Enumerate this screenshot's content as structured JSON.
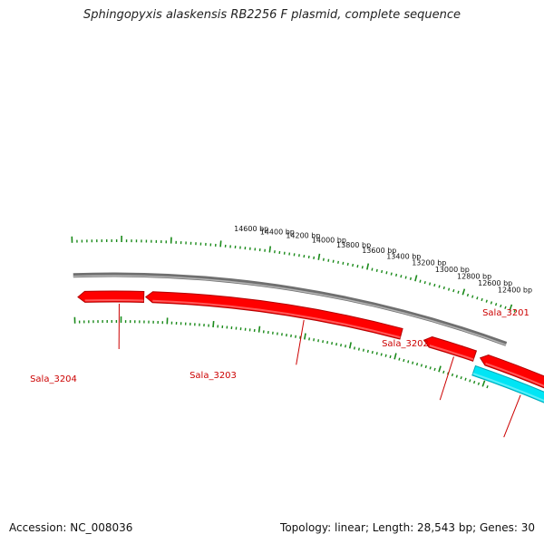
{
  "title": "Sphingopyxis alaskensis RB2256 F plasmid, complete sequence",
  "footer": {
    "accession": "Accession: NC_008036",
    "topology": "Topology: linear; Length: 28,543 bp; Genes: 30"
  },
  "tick_labels": [
    "12400 bp",
    "12600 bp",
    "12800 bp",
    "13000 bp",
    "13200 bp",
    "13400 bp",
    "13600 bp",
    "13800 bp",
    "14000 bp",
    "14200 bp",
    "14400 bp",
    "14600 bp"
  ],
  "genes": [
    {
      "name": "Sala_3201",
      "color": "#00e5f5",
      "strand": "+"
    },
    {
      "name": "Sala_3202",
      "color": "#ff0000",
      "strand": "-"
    },
    {
      "name": "Sala_3203",
      "color": "#ff0000",
      "strand": "-"
    },
    {
      "name": "Sala_3204",
      "color": "#ff0000",
      "strand": "-"
    }
  ],
  "colors": {
    "backbone": "#8a8a8a",
    "tick": "#1a8a1a",
    "gene_forward": "#00e5f5",
    "gene_reverse": "#ff0000",
    "label": "#cc0000"
  }
}
